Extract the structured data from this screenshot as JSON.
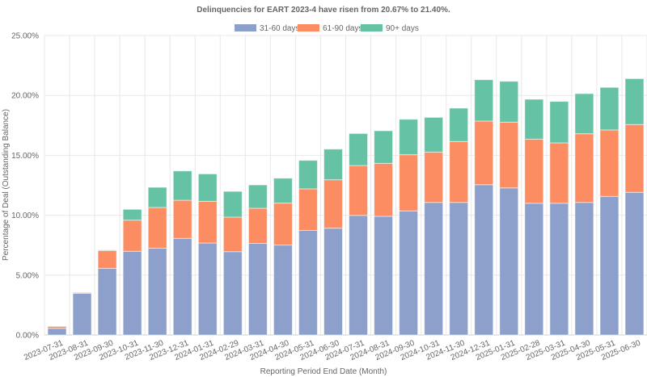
{
  "chart_data": {
    "type": "bar",
    "stacked": true,
    "title": "Delinquencies for EART 2023-4 have risen from 20.67% to 21.40%.",
    "xlabel": "Reporting Period End Date (Month)",
    "ylabel": "Percentage of Deal (Outstanding Balance)",
    "ylim": [
      0,
      25
    ],
    "yticks": [
      0,
      5,
      10,
      15,
      20,
      25
    ],
    "ytick_labels": [
      "0.00%",
      "5.00%",
      "10.00%",
      "15.00%",
      "20.00%",
      "25.00%"
    ],
    "grid": true,
    "legend_position": "top-center",
    "categories": [
      "2023-07-31",
      "2023-08-31",
      "2023-09-30",
      "2023-10-31",
      "2023-11-30",
      "2023-12-31",
      "2024-01-31",
      "2024-02-29",
      "2024-03-31",
      "2024-04-30",
      "2024-05-31",
      "2024-06-30",
      "2024-07-31",
      "2024-08-31",
      "2024-09-30",
      "2024-10-31",
      "2024-11-30",
      "2024-12-31",
      "2025-01-31",
      "2025-02-28",
      "2025-03-31",
      "2025-04-30",
      "2025-05-31",
      "2025-06-30"
    ],
    "series": [
      {
        "name": "31-60 days",
        "color": "#8DA0CB",
        "values": [
          0.56,
          3.48,
          5.57,
          6.99,
          7.25,
          8.07,
          7.68,
          6.96,
          7.65,
          7.51,
          8.73,
          8.92,
          9.99,
          9.91,
          10.36,
          11.07,
          11.07,
          12.55,
          12.28,
          11.0,
          11.0,
          11.07,
          11.57,
          11.91
        ]
      },
      {
        "name": "61-90 days",
        "color": "#FC8D62",
        "values": [
          0.16,
          0.07,
          1.48,
          2.6,
          3.4,
          3.18,
          3.48,
          2.88,
          2.93,
          3.5,
          3.47,
          4.04,
          4.16,
          4.42,
          4.69,
          4.2,
          5.08,
          5.31,
          5.49,
          5.35,
          5.04,
          5.73,
          5.55,
          5.66
        ]
      },
      {
        "name": "90+ days",
        "color": "#66C2A5",
        "values": [
          0.02,
          0.02,
          0.05,
          0.9,
          1.68,
          2.45,
          2.29,
          2.15,
          1.95,
          2.08,
          2.38,
          2.56,
          2.67,
          2.72,
          2.96,
          2.9,
          2.79,
          3.45,
          3.41,
          3.33,
          3.46,
          3.35,
          3.55,
          3.83
        ]
      }
    ]
  }
}
